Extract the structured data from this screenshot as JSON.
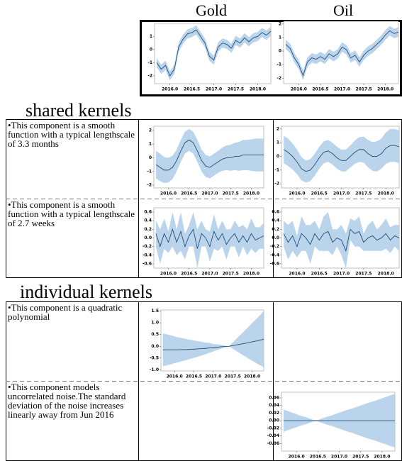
{
  "x": [
    2015.7,
    2015.8,
    2015.9,
    2016.0,
    2016.1,
    2016.2,
    2016.3,
    2016.4,
    2016.5,
    2016.6,
    2016.7,
    2016.8,
    2016.9,
    2017.0,
    2017.1,
    2017.2,
    2017.3,
    2017.4,
    2017.5,
    2017.6,
    2017.7,
    2017.8,
    2017.9,
    2018.0,
    2018.1,
    2018.2,
    2018.3
  ],
  "xlim": [
    2015.65,
    2018.3
  ],
  "xticks": [
    {
      "value": 2016,
      "label": "2016.0"
    },
    2016.5,
    {
      "value": 2017,
      "label": "2017.0"
    },
    2017.5,
    {
      "value": 2018,
      "label": "2018.0"
    }
  ],
  "top": {
    "panels": {
      "gold": {
        "type": "line",
        "title": "Gold",
        "ylim": [
          -2.6,
          2.0
        ],
        "yticks": [
          -2,
          -1,
          0,
          1
        ],
        "mean": [
          -1.0,
          -1.5,
          -1.2,
          -2.0,
          -1.5,
          0.2,
          0.8,
          1.2,
          1.3,
          1.5,
          1.0,
          0.5,
          -0.5,
          -0.8,
          0.2,
          0.5,
          0.4,
          0.1,
          0.7,
          0.5,
          0.9,
          0.6,
          0.9,
          1.0,
          1.3,
          1.1,
          1.4
        ],
        "sd": 0.35
      },
      "oil": {
        "type": "line",
        "title": "Oil",
        "ylim": [
          -2.4,
          2.2
        ],
        "yticks": [
          -2,
          -1,
          0,
          1,
          2
        ],
        "mean": [
          0.5,
          0.2,
          -0.5,
          -1.0,
          -1.8,
          -0.8,
          -0.5,
          -0.6,
          -0.4,
          -0.6,
          -0.2,
          -0.4,
          -0.2,
          0.3,
          0.1,
          -0.5,
          -0.3,
          -0.8,
          -0.3,
          0.0,
          0.2,
          0.5,
          0.8,
          1.2,
          1.5,
          1.3,
          1.4
        ],
        "sd": 0.35
      }
    }
  },
  "shared": {
    "heading": "shared kernels",
    "rows": [
      {
        "text": "•This component is a smooth function with a typical lengthscale of 3.3 months",
        "panels": {
          "gold": {
            "type": "line",
            "ylim": [
              -2.2,
              2.3
            ],
            "yticks": [
              -2,
              -1,
              0,
              1,
              2
            ],
            "mean": [
              -0.5,
              -0.7,
              -0.9,
              -0.9,
              -0.7,
              -0.2,
              0.5,
              1.1,
              1.3,
              1.1,
              0.5,
              -0.2,
              -0.6,
              -0.7,
              -0.5,
              -0.3,
              -0.1,
              0.0,
              0.0,
              0.1,
              0.1,
              0.2,
              0.2,
              0.2,
              0.2,
              0.2,
              0.2
            ],
            "sd": [
              1.0,
              1.0,
              0.95,
              0.9,
              0.85,
              0.8,
              0.8,
              0.8,
              0.8,
              0.8,
              0.8,
              0.8,
              0.8,
              0.8,
              0.8,
              0.8,
              0.85,
              0.9,
              0.95,
              1.0,
              1.05,
              1.1,
              1.1,
              1.15,
              1.2,
              1.2,
              1.2
            ]
          },
          "oil": {
            "type": "line",
            "ylim": [
              -2.3,
              2.2
            ],
            "yticks": [
              -2,
              -1,
              0,
              1,
              2
            ],
            "mean": [
              0.5,
              0.3,
              0.0,
              -0.4,
              -0.9,
              -1.1,
              -1.0,
              -0.6,
              -0.1,
              0.3,
              0.4,
              0.2,
              -0.1,
              -0.3,
              -0.3,
              0.0,
              0.3,
              0.5,
              0.5,
              0.2,
              0.0,
              0.0,
              0.2,
              0.6,
              0.8,
              0.8,
              0.7
            ],
            "sd": [
              1.0,
              1.0,
              0.95,
              0.9,
              0.85,
              0.8,
              0.8,
              0.8,
              0.8,
              0.8,
              0.8,
              0.8,
              0.8,
              0.8,
              0.8,
              0.8,
              0.85,
              0.9,
              0.95,
              1.0,
              1.05,
              1.1,
              1.1,
              1.15,
              1.2,
              1.2,
              1.2
            ]
          }
        }
      },
      {
        "text": "•This component is a smooth function with a typical lengthscale of 2.7 weeks",
        "panels": {
          "gold": {
            "type": "line",
            "ylim": [
              -0.7,
              0.7
            ],
            "yticks": [
              -0.6,
              -0.4,
              -0.2,
              {
                "value": 0,
                "label": "0.0"
              },
              0.2,
              0.4,
              0.6
            ],
            "mean": [
              0.1,
              -0.2,
              0.1,
              -0.1,
              0.2,
              -0.1,
              0.15,
              -0.2,
              0.05,
              0.2,
              -0.25,
              0.1,
              0.0,
              -0.2,
              0.15,
              -0.05,
              0.1,
              -0.15,
              0.0,
              0.1,
              -0.1,
              0.05,
              -0.1,
              0.1,
              -0.05,
              0.0,
              0.05
            ],
            "sd": [
              0.3,
              0.4,
              0.35,
              0.25,
              0.4,
              0.3,
              0.45,
              0.3,
              0.25,
              0.4,
              0.45,
              0.3,
              0.2,
              0.35,
              0.4,
              0.25,
              0.3,
              0.35,
              0.2,
              0.3,
              0.35,
              0.25,
              0.3,
              0.35,
              0.3,
              0.25,
              0.3
            ]
          },
          "oil": {
            "type": "line",
            "ylim": [
              -0.7,
              0.7
            ],
            "yticks": [
              -0.6,
              -0.4,
              -0.2,
              {
                "value": 0,
                "label": "0.0"
              },
              0.2,
              0.4,
              0.6
            ],
            "mean": [
              0.1,
              -0.1,
              0.05,
              -0.2,
              0.1,
              0.0,
              -0.15,
              0.1,
              -0.05,
              0.1,
              0.15,
              -0.1,
              0.0,
              -0.05,
              -0.3,
              0.2,
              0.1,
              0.15,
              -0.1,
              0.0,
              0.05,
              -0.05,
              0.0,
              0.1,
              -0.05,
              0.05,
              0.0
            ],
            "sd": [
              0.3,
              0.4,
              0.35,
              0.25,
              0.4,
              0.3,
              0.45,
              0.3,
              0.25,
              0.4,
              0.45,
              0.3,
              0.2,
              0.35,
              0.4,
              0.25,
              0.3,
              0.35,
              0.2,
              0.3,
              0.35,
              0.25,
              0.3,
              0.35,
              0.3,
              0.25,
              0.3
            ]
          }
        }
      }
    ]
  },
  "individual": {
    "heading": "individual kernels",
    "rows": [
      {
        "text": "•This component is a quadratic polynomial",
        "panels": {
          "gold": {
            "type": "line",
            "ylim": [
              -1.05,
              1.55
            ],
            "yticks": [
              {
                "value": -1,
                "label": "-1.0"
              },
              -0.5,
              {
                "value": 0,
                "label": "0.0"
              },
              0.5,
              {
                "value": 1,
                "label": "1.0"
              },
              1.5
            ],
            "mean": [
              -0.15,
              -0.15,
              -0.15,
              -0.15,
              -0.15,
              -0.14,
              -0.14,
              -0.13,
              -0.12,
              -0.11,
              -0.1,
              -0.09,
              -0.07,
              -0.06,
              -0.04,
              -0.02,
              -0.01,
              0.0,
              0.03,
              0.06,
              0.09,
              0.12,
              0.15,
              0.19,
              0.22,
              0.26,
              0.3
            ],
            "sd": [
              0.7,
              0.66,
              0.62,
              0.57,
              0.53,
              0.49,
              0.45,
              0.41,
              0.37,
              0.33,
              0.29,
              0.25,
              0.21,
              0.16,
              0.12,
              0.08,
              0.04,
              0.0,
              0.13,
              0.27,
              0.4,
              0.53,
              0.67,
              0.8,
              0.93,
              1.06,
              1.2
            ]
          }
        }
      },
      {
        "text": "•This component models uncorrelated noise.The standard deviation of the noise increases linearly away from Jun 2016",
        "panels": {
          "oil": {
            "type": "line",
            "ylim": [
              -0.08,
              0.075
            ],
            "yticks": [
              -0.06,
              -0.04,
              -0.02,
              {
                "value": 0,
                "label": "0.00"
              },
              0.02,
              0.04,
              0.06
            ],
            "mean": [
              0,
              0,
              0,
              0,
              0,
              0,
              0,
              0,
              0,
              0,
              0,
              0,
              0,
              0,
              0,
              0,
              0,
              0,
              0,
              0,
              0,
              0,
              0,
              0,
              0,
              0,
              0
            ],
            "sd": [
              0.029,
              0.025,
              0.021,
              0.017,
              0.013,
              0.01,
              0.006,
              0.002,
              0.002,
              0.006,
              0.01,
              0.013,
              0.017,
              0.021,
              0.025,
              0.029,
              0.032,
              0.036,
              0.04,
              0.044,
              0.048,
              0.051,
              0.055,
              0.059,
              0.063,
              0.067,
              0.07
            ]
          }
        }
      }
    ]
  }
}
